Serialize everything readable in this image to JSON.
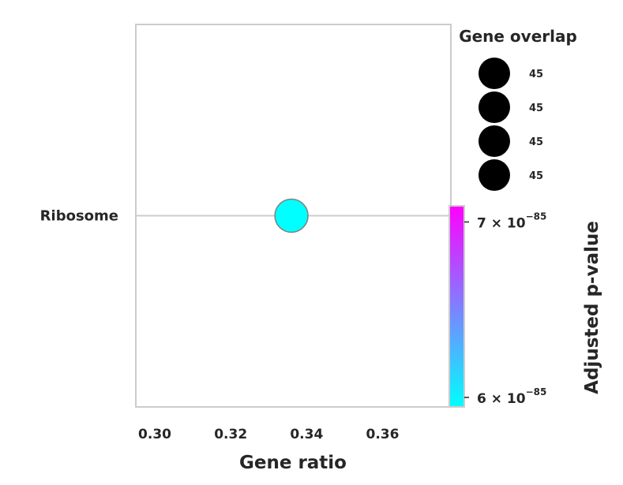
{
  "chart_data": {
    "type": "scatter",
    "categories": [
      "Ribosome"
    ],
    "points": [
      {
        "term": "Ribosome",
        "gene_ratio": 0.336,
        "adjusted_p_value": 5.95e-85,
        "gene_overlap": 45
      }
    ],
    "xlabel": "Gene ratio",
    "xticks": [
      {
        "value": 0.3,
        "label": "0.30"
      },
      {
        "value": 0.32,
        "label": "0.32"
      },
      {
        "value": 0.34,
        "label": "0.34"
      },
      {
        "value": 0.36,
        "label": "0.36"
      }
    ],
    "xlim": [
      0.295,
      0.378
    ],
    "grid": true,
    "colorbar": {
      "label": "Adjusted p-value",
      "scale": "log",
      "range": [
        5.95e-85,
        7.1e-85
      ],
      "colormap": [
        "#00ffff",
        "#ff00ff"
      ],
      "ticks": [
        {
          "value": 6e-85,
          "mantissa": "6",
          "base": "10",
          "exponent": "−85"
        },
        {
          "value": 7e-85,
          "mantissa": "7",
          "base": "10",
          "exponent": "−85"
        }
      ]
    },
    "size_legend": {
      "title": "Gene overlap",
      "entries": [
        "45",
        "45",
        "45",
        "45"
      ]
    },
    "colors": {
      "point": "#00ffff",
      "point_edge": "#808080",
      "axes": "#cccccc",
      "text": "#262626"
    }
  }
}
